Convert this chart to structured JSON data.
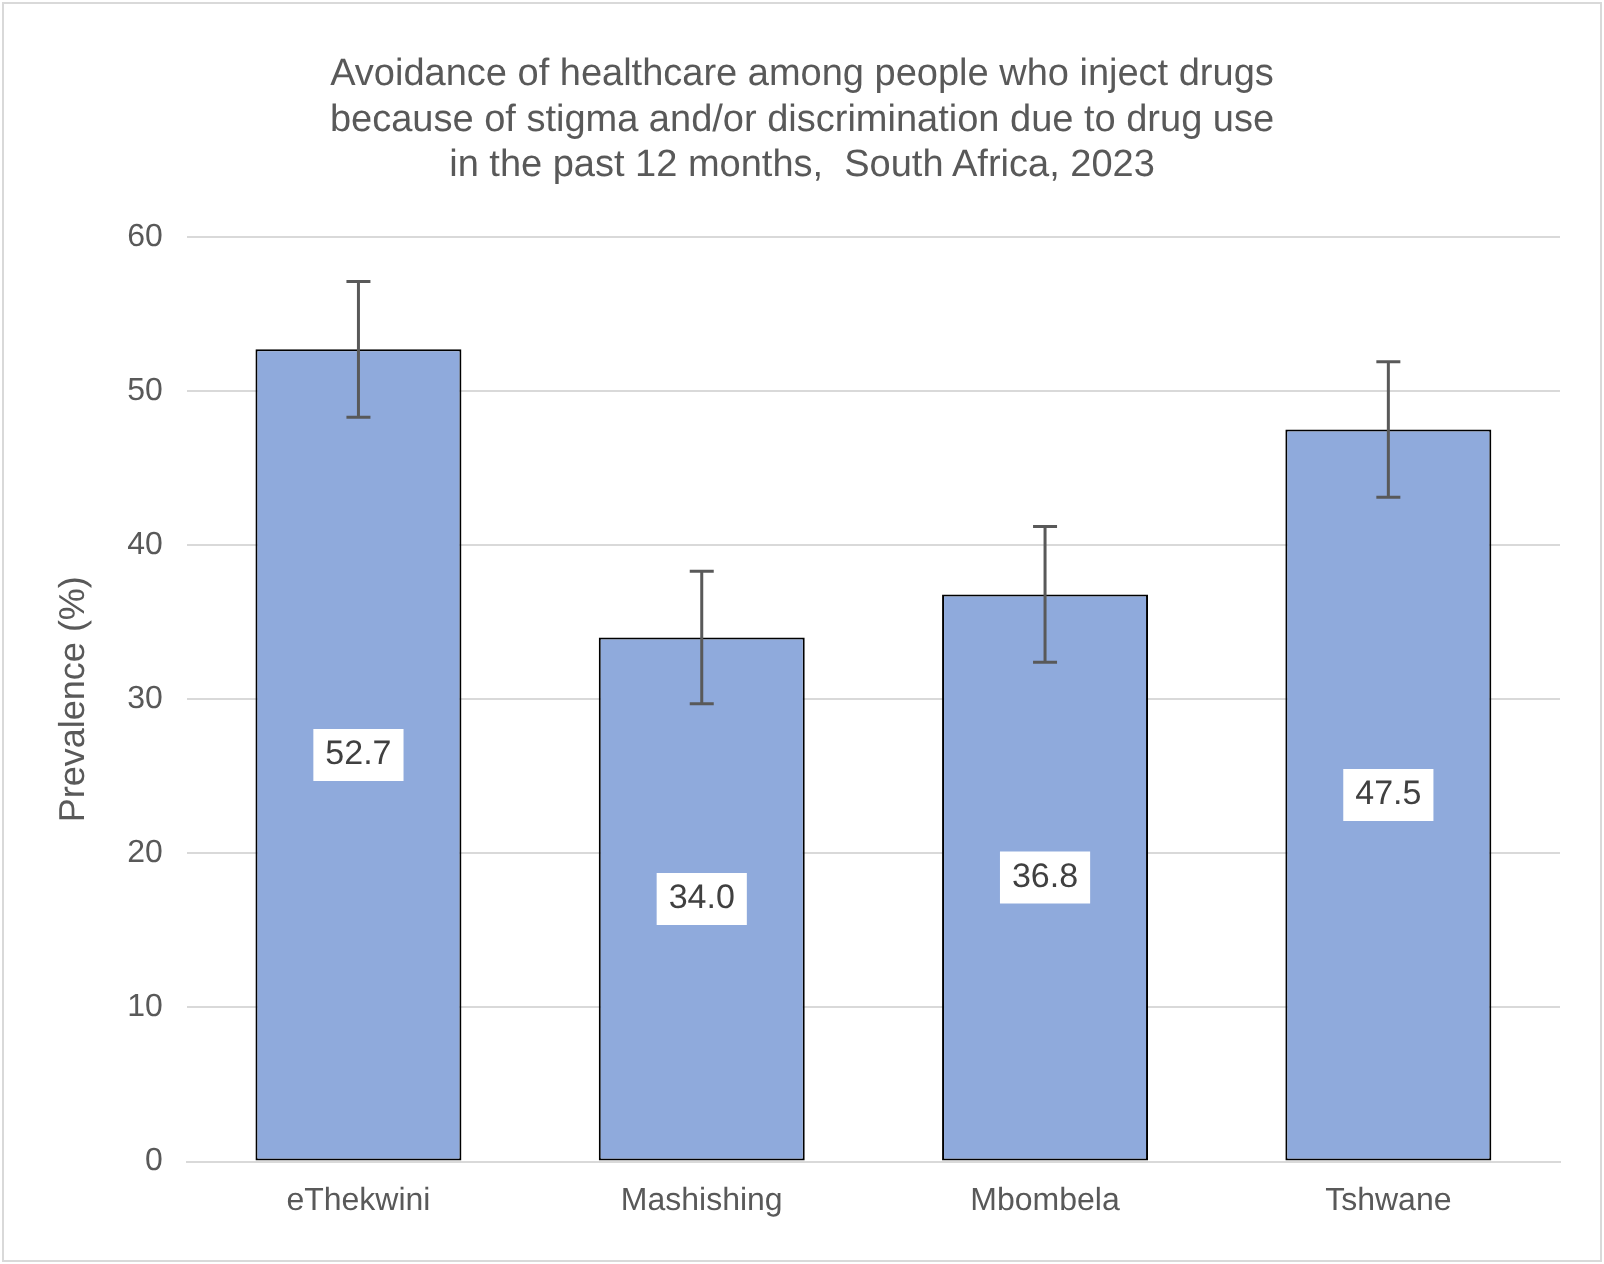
{
  "chart_data": {
    "type": "bar",
    "title": [
      "Avoidance of healthcare among people who inject drugs",
      "because of stigma and/or discrimination due to drug use",
      "in the past 12 months,  South Africa, 2023"
    ],
    "ylabel": "Prevalence (%)",
    "categories": [
      "eThekwini",
      "Mashishing",
      "Mbombela",
      "Tshwane"
    ],
    "values": [
      52.7,
      34.0,
      36.8,
      47.5
    ],
    "value_labels": [
      "52.7",
      "34.0",
      "36.8",
      "47.5"
    ],
    "errors": [
      4.4,
      4.3,
      4.4,
      4.4
    ],
    "color": "#8faadc",
    "ylim": [
      0,
      60
    ],
    "yticks": [
      0,
      10,
      20,
      30,
      40,
      50,
      60
    ],
    "grid": "y",
    "legend": false
  }
}
